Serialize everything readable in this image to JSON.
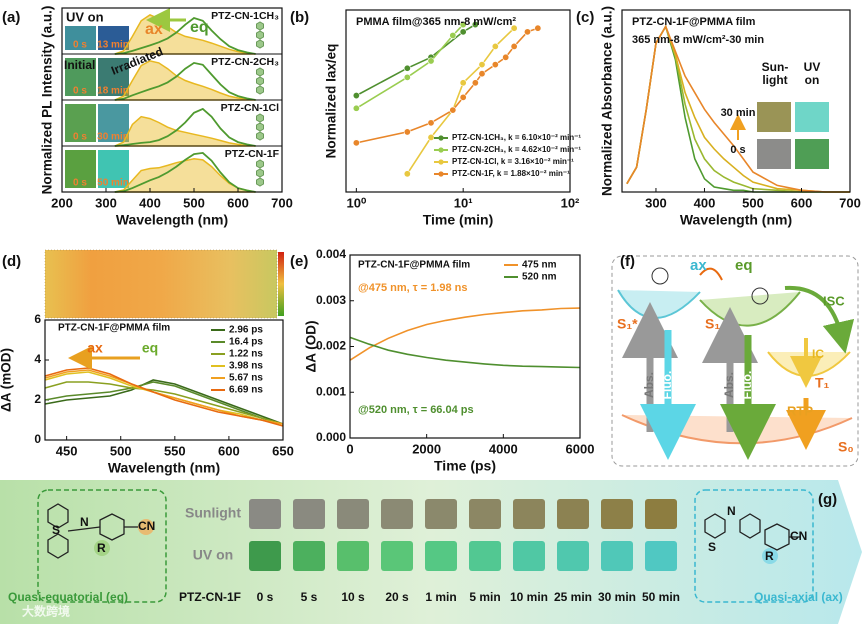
{
  "chart_data": [
    {
      "type": "ridgeline",
      "panel_label": "(a)",
      "ylabel": "Normalized PL Intensity (a.u.)",
      "xlabel": "Wavelength (nm)",
      "xlim": [
        200,
        700
      ],
      "xticks": [
        200,
        300,
        400,
        500,
        600,
        700
      ],
      "ylim": [
        0,
        1
      ],
      "x": [
        320,
        340,
        360,
        380,
        400,
        420,
        440,
        460,
        480,
        500,
        520,
        540,
        560,
        580,
        600,
        620,
        640
      ],
      "annotations": {
        "uv_on": "UV on",
        "ax": "ax",
        "eq": "eq",
        "initial": "Initial",
        "irradiated": "Irradiated"
      },
      "rows": [
        {
          "label": "PTZ-CN-1CH₃",
          "times": [
            "0 s",
            "13 min"
          ],
          "swatches": [
            "#3f8f9c",
            "#2b5c96"
          ],
          "series": [
            {
              "color": "#e8b820",
              "area": true,
              "values": [
                0,
                0.08,
                0.45,
                0.85,
                1.0,
                0.9,
                0.7,
                0.55,
                0.45,
                0.4,
                0.35,
                0.28,
                0.2,
                0.12,
                0.06,
                0.02,
                0
              ]
            },
            {
              "color": "#4f9a2f",
              "values": [
                0,
                0.02,
                0.08,
                0.15,
                0.22,
                0.3,
                0.4,
                0.55,
                0.75,
                0.92,
                0.85,
                0.6,
                0.38,
                0.2,
                0.1,
                0.04,
                0
              ]
            }
          ]
        },
        {
          "label": "PTZ-CN-2CH₃",
          "times": [
            "0 s",
            "18 min"
          ],
          "swatches": [
            "#4f9a5c",
            "#3b7b72"
          ],
          "series": [
            {
              "color": "#e8b820",
              "area": true,
              "values": [
                0,
                0.1,
                0.5,
                0.88,
                1.0,
                0.95,
                0.8,
                0.62,
                0.5,
                0.42,
                0.35,
                0.27,
                0.18,
                0.1,
                0.05,
                0.02,
                0
              ]
            },
            {
              "color": "#4f9a2f",
              "values": [
                0,
                0.03,
                0.12,
                0.2,
                0.28,
                0.35,
                0.45,
                0.6,
                0.8,
                0.95,
                0.9,
                0.65,
                0.4,
                0.2,
                0.1,
                0.04,
                0
              ]
            }
          ]
        },
        {
          "label": "PTZ-CN-1Cl",
          "times": [
            "0 s",
            "30 min"
          ],
          "swatches": [
            "#5aa050",
            "#4a98a0"
          ],
          "series": [
            {
              "color": "#e8b820",
              "area": true,
              "values": [
                0,
                0.1,
                0.55,
                0.75,
                0.7,
                0.6,
                0.48,
                0.4,
                0.35,
                0.3,
                0.25,
                0.2,
                0.14,
                0.08,
                0.04,
                0.01,
                0
              ]
            },
            {
              "color": "#4f9a2f",
              "values": [
                0,
                0.02,
                0.05,
                0.08,
                0.1,
                0.15,
                0.25,
                0.4,
                0.6,
                0.85,
                0.95,
                0.75,
                0.45,
                0.22,
                0.1,
                0.04,
                0
              ]
            }
          ]
        },
        {
          "label": "PTZ-CN-1F",
          "times": [
            "0 s",
            "50 min"
          ],
          "swatches": [
            "#5aa040",
            "#40c4b2"
          ],
          "series": [
            {
              "color": "#e8b820",
              "area": true,
              "values": [
                0,
                0.05,
                0.3,
                0.55,
                0.6,
                0.62,
                0.68,
                0.75,
                0.8,
                0.85,
                0.82,
                0.65,
                0.42,
                0.22,
                0.1,
                0.04,
                0
              ]
            },
            {
              "color": "#4f9a2f",
              "values": [
                0,
                0.02,
                0.1,
                0.2,
                0.3,
                0.38,
                0.5,
                0.65,
                0.82,
                0.97,
                1.0,
                0.8,
                0.5,
                0.25,
                0.1,
                0.04,
                0
              ]
            }
          ]
        }
      ]
    },
    {
      "type": "line",
      "panel_label": "(b)",
      "ylabel": "Normalized Iax/eq",
      "xlabel": "Time (min)",
      "log_x": true,
      "markers": true,
      "legend": "lower right",
      "xlim": [
        0.8,
        100
      ],
      "xticks": [
        {
          "value": 1,
          "label": "10⁰"
        },
        {
          "value": 10,
          "label": "10¹"
        },
        {
          "value": 100,
          "label": "10²"
        }
      ],
      "ylim": [
        0,
        1
      ],
      "annotations": {
        "title": "PMMA film@365 nm-8 mW/cm²"
      },
      "series": [
        {
          "name": "PTZ-CN-1CH₃, k = 6.10×10⁻² min⁻¹",
          "color": "#4f8f2f",
          "x": [
            1,
            3,
            5,
            10,
            13
          ],
          "values": [
            0.53,
            0.68,
            0.74,
            0.88,
            0.92
          ]
        },
        {
          "name": "PTZ-CN-2CH₃, k = 4.62×10⁻² min⁻¹",
          "color": "#9acd50",
          "x": [
            1,
            3,
            5,
            8,
            10
          ],
          "values": [
            0.46,
            0.63,
            0.72,
            0.86,
            0.92
          ]
        },
        {
          "name": "PTZ-CN-1Cl, k = 3.16×10⁻² min⁻¹",
          "color": "#e8c840",
          "x": [
            3,
            5,
            8,
            10,
            15,
            20,
            30
          ],
          "values": [
            0.1,
            0.3,
            0.45,
            0.6,
            0.7,
            0.8,
            0.9
          ]
        },
        {
          "name": "PTZ-CN-1F, k = 1.88×10⁻² min⁻¹",
          "color": "#e8862a",
          "x": [
            1,
            3,
            5,
            8,
            10,
            13,
            15,
            20,
            25,
            30,
            40,
            50
          ],
          "values": [
            0.27,
            0.33,
            0.38,
            0.45,
            0.52,
            0.6,
            0.65,
            0.7,
            0.74,
            0.8,
            0.88,
            0.9
          ]
        }
      ]
    },
    {
      "type": "line",
      "panel_label": "(c)",
      "ylabel": "Normalized Absorbance (a.u.)",
      "xlabel": "Wavelength (nm)",
      "xlim": [
        230,
        700
      ],
      "xticks": [
        300,
        400,
        500,
        600,
        700
      ],
      "ylim": [
        0,
        1.1
      ],
      "x": [
        240,
        260,
        280,
        300,
        320,
        340,
        360,
        380,
        400,
        420,
        440,
        460,
        480,
        500,
        550,
        600,
        650,
        700
      ],
      "annotations": {
        "title": "PTZ-CN-1F@PMMA film",
        "subtitle": "365 nm-8 mW/cm²-30 min",
        "sunlight": [
          "Sun-",
          "light"
        ],
        "uv_on": [
          "UV",
          "on"
        ],
        "t_end": "30 min",
        "t_start": "0 s"
      },
      "inset_colors": {
        "sunlight": [
          "#9a9456",
          "#8c8c8a"
        ],
        "uv": [
          "#6fd6c8",
          "#4f9e55"
        ]
      },
      "series": [
        {
          "color": "#4f9a2f",
          "values": [
            0.05,
            0.15,
            0.5,
            0.9,
            1.0,
            0.8,
            0.45,
            0.2,
            0.08,
            0.03,
            0.02,
            0.01,
            0.01,
            0,
            0,
            0,
            0,
            0
          ]
        },
        {
          "color": "#9ab830",
          "values": [
            0.05,
            0.15,
            0.5,
            0.9,
            1.0,
            0.82,
            0.53,
            0.32,
            0.2,
            0.13,
            0.09,
            0.06,
            0.04,
            0.02,
            0.01,
            0,
            0,
            0
          ]
        },
        {
          "color": "#d8b020",
          "values": [
            0.05,
            0.15,
            0.5,
            0.9,
            1.0,
            0.83,
            0.6,
            0.45,
            0.33,
            0.26,
            0.2,
            0.15,
            0.1,
            0.06,
            0.02,
            0.01,
            0,
            0
          ]
        },
        {
          "color": "#e8862a",
          "values": [
            0.05,
            0.15,
            0.5,
            0.9,
            1.0,
            0.85,
            0.7,
            0.6,
            0.5,
            0.42,
            0.35,
            0.28,
            0.2,
            0.12,
            0.04,
            0.01,
            0,
            0
          ]
        }
      ]
    },
    {
      "type": "line",
      "panel_label": "(d)",
      "ylabel": "ΔA (mOD)",
      "xlabel": "Wavelength (nm)",
      "legend": "upper right",
      "xlim": [
        430,
        650
      ],
      "xticks": [
        450,
        500,
        550,
        600,
        650
      ],
      "ylim": [
        0,
        6
      ],
      "yticks": [
        0,
        2,
        4,
        6
      ],
      "x": [
        430,
        450,
        470,
        490,
        510,
        530,
        550,
        570,
        590,
        610,
        630,
        650
      ],
      "annotations": {
        "title": "PTZ-CN-1F@PMMA film",
        "ax": "ax",
        "eq": "eq"
      },
      "series": [
        {
          "name": "2.96 ps",
          "color": "#3a6a1a",
          "values": [
            1.8,
            2.0,
            2.1,
            2.2,
            2.5,
            3.0,
            2.8,
            2.4,
            2.0,
            1.6,
            1.2,
            0.8
          ]
        },
        {
          "name": "16.4 ps",
          "color": "#5a8a2a",
          "values": [
            2.0,
            2.2,
            2.3,
            2.4,
            2.6,
            2.9,
            2.7,
            2.3,
            1.9,
            1.5,
            1.1,
            0.8
          ]
        },
        {
          "name": "1.22 ns",
          "color": "#8aa020",
          "values": [
            2.6,
            2.9,
            2.9,
            2.8,
            2.6,
            2.5,
            2.3,
            2.0,
            1.7,
            1.4,
            1.1,
            0.8
          ]
        },
        {
          "name": "3.98 ns",
          "color": "#e0c020",
          "values": [
            3.0,
            3.3,
            3.4,
            3.1,
            2.7,
            2.4,
            2.1,
            1.8,
            1.5,
            1.3,
            1.0,
            0.8
          ]
        },
        {
          "name": "5.67 ns",
          "color": "#f0a020",
          "values": [
            3.1,
            3.4,
            3.5,
            3.2,
            2.8,
            2.4,
            2.1,
            1.8,
            1.5,
            1.2,
            1.0,
            0.8
          ]
        },
        {
          "name": "6.69 ns",
          "color": "#e86a10",
          "values": [
            3.2,
            3.5,
            3.6,
            3.3,
            2.8,
            2.4,
            2.0,
            1.7,
            1.4,
            1.2,
            1.0,
            0.7
          ]
        }
      ]
    },
    {
      "type": "line",
      "panel_label": "(e)",
      "ylabel": "ΔA (OD)",
      "xlabel": "Time (ps)",
      "legend": "upper right",
      "xlim": [
        0,
        6000
      ],
      "xticks": [
        0,
        2000,
        4000,
        6000
      ],
      "ylim": [
        0,
        0.004
      ],
      "yticks": [
        {
          "value": 0,
          "label": "0.000"
        },
        {
          "value": 0.001,
          "label": "0.001"
        },
        {
          "value": 0.002,
          "label": "0.002"
        },
        {
          "value": 0.003,
          "label": "0.003"
        },
        {
          "value": 0.004,
          "label": "0.004"
        }
      ],
      "x": [
        0,
        500,
        1000,
        1500,
        2000,
        2500,
        3000,
        3500,
        4000,
        4500,
        5000,
        5500,
        6000
      ],
      "annotations": {
        "title": "PTZ-CN-1F@PMMA film",
        "fit_475": "@475 nm, τ = 1.98 ns",
        "fit_520": "@520 nm, τ = 66.04 ps"
      },
      "series": [
        {
          "name": "475 nm",
          "color": "#f0922a",
          "values": [
            0.0017,
            0.00197,
            0.00218,
            0.00235,
            0.00248,
            0.00257,
            0.00264,
            0.0027,
            0.00274,
            0.00278,
            0.0028,
            0.00283,
            0.00284
          ]
        },
        {
          "name": "520 nm",
          "color": "#4f8f2f",
          "values": [
            0.0022,
            0.00205,
            0.00192,
            0.00183,
            0.00176,
            0.0017,
            0.00166,
            0.00162,
            0.00159,
            0.00157,
            0.00156,
            0.00155,
            0.00154
          ]
        }
      ]
    }
  ],
  "diagram_f": {
    "panel_label": "(f)",
    "ax": "ax",
    "eq": "eq",
    "s1_star": "S₁*",
    "s1": "S₁",
    "isc": "ISC",
    "ic": "IC",
    "t1": "T₁",
    "rtp": "RTP",
    "s0": "S₀",
    "abs_1": "Abs.",
    "fluo_1": "Fluo.",
    "abs_2": "Abs.",
    "fluo_2": "Fluo."
  },
  "strip_g": {
    "panel_label": "(g)",
    "sunlight": "Sunlight",
    "uv_on": "UV on",
    "compound": "PTZ-CN-1F",
    "times": [
      "0 s",
      "5 s",
      "10 s",
      "20 s",
      "1 min",
      "5 min",
      "10 min",
      "25 min",
      "30 min",
      "50 min"
    ],
    "sunlight_colors": [
      "#8a8a84",
      "#8a8a80",
      "#8a8a7a",
      "#8b8a74",
      "#8b896c",
      "#8c8764",
      "#8c855c",
      "#8c8252",
      "#8d8048",
      "#8d7d40"
    ],
    "uv_colors": [
      "#3e9a4c",
      "#4cb05e",
      "#58bf6c",
      "#5ac678",
      "#55c884",
      "#52c892",
      "#50c8a4",
      "#50c8ae",
      "#50c8b8",
      "#50c8c2"
    ],
    "eq_label": "Quasi-equatorial (eq)",
    "ax_label": "Quasi-axial (ax)",
    "mol_eq": {
      "s": "S",
      "n": "N",
      "r": "R",
      "cn": "CN"
    },
    "mol_ax": {
      "s": "S",
      "n": "N",
      "r": "R",
      "cn": "CN"
    },
    "watermark": "大数跨境"
  }
}
